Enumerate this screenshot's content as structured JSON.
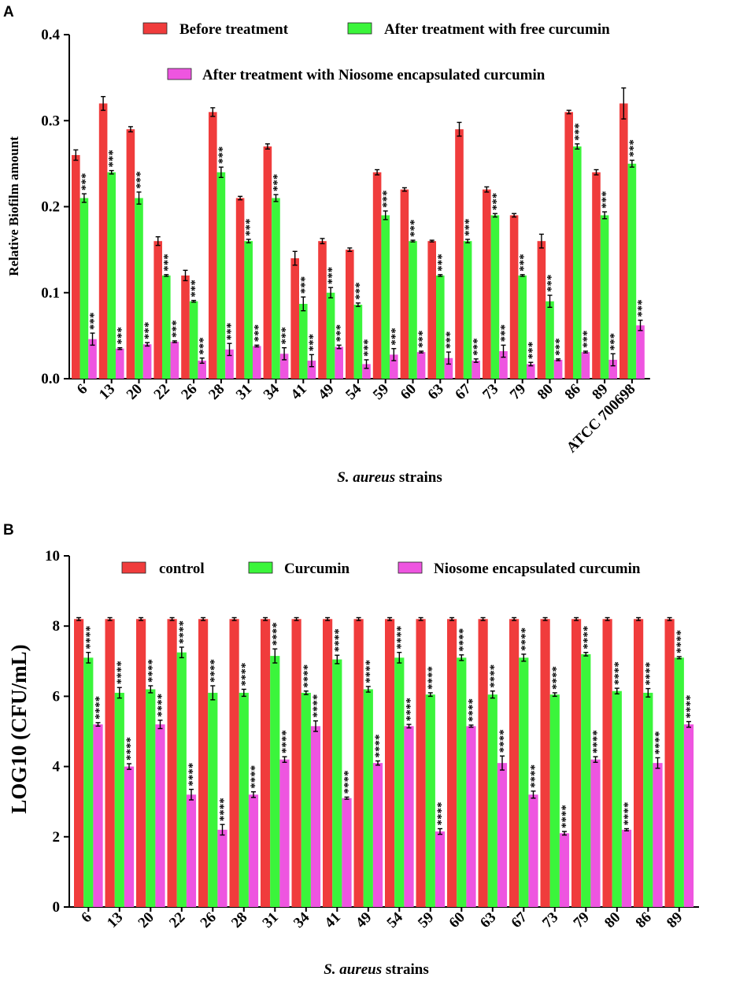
{
  "colors": {
    "series1": "#F03C3C",
    "series2": "#3BF53B",
    "series3": "#EE55E0",
    "axis": "#000000"
  },
  "chart_data": [
    {
      "panel": "A",
      "type": "bar",
      "ylabel": "Relative Biofilm amount",
      "xlabel_italic": "S. aureus",
      "xlabel_rest": "strains",
      "ylim": [
        0,
        0.4
      ],
      "yticks": [
        "0.0",
        "0.1",
        "0.2",
        "0.3",
        "0.4"
      ],
      "categories": [
        "6",
        "13",
        "20",
        "22",
        "26",
        "28",
        "31",
        "34",
        "41",
        "49",
        "54",
        "59",
        "60",
        "63",
        "67",
        "73",
        "79",
        "80",
        "86",
        "89",
        "ATCC 700698"
      ],
      "legend": [
        "Before treatment",
        "After treatment with free curcumin",
        "After treatment with Niosome encapsulated curcumin"
      ],
      "series": [
        {
          "name": "Before treatment",
          "values": [
            0.26,
            0.32,
            0.29,
            0.16,
            0.12,
            0.31,
            0.21,
            0.27,
            0.14,
            0.16,
            0.15,
            0.24,
            0.22,
            0.16,
            0.29,
            0.22,
            0.19,
            0.16,
            0.31,
            0.24,
            0.32
          ],
          "errors": [
            0.006,
            0.008,
            0.003,
            0.005,
            0.006,
            0.005,
            0.002,
            0.003,
            0.008,
            0.003,
            0.002,
            0.003,
            0.002,
            0.001,
            0.008,
            0.003,
            0.002,
            0.008,
            0.002,
            0.003,
            0.018
          ]
        },
        {
          "name": "After treatment with free curcumin",
          "values": [
            0.21,
            0.24,
            0.21,
            0.12,
            0.09,
            0.24,
            0.16,
            0.21,
            0.087,
            0.1,
            0.086,
            0.19,
            0.16,
            0.12,
            0.16,
            0.19,
            0.12,
            0.09,
            0.27,
            0.19,
            0.25
          ],
          "errors": [
            0.005,
            0.002,
            0.007,
            0.001,
            0.001,
            0.006,
            0.002,
            0.004,
            0.008,
            0.006,
            0.002,
            0.005,
            0.001,
            0.001,
            0.002,
            0.002,
            0.001,
            0.007,
            0.003,
            0.004,
            0.004
          ]
        },
        {
          "name": "After treatment with Niosome encapsulated curcumin",
          "values": [
            0.046,
            0.035,
            0.04,
            0.043,
            0.021,
            0.034,
            0.038,
            0.029,
            0.021,
            0.037,
            0.017,
            0.028,
            0.031,
            0.024,
            0.021,
            0.032,
            0.017,
            0.022,
            0.031,
            0.022,
            0.062
          ],
          "errors": [
            0.007,
            0.001,
            0.002,
            0.001,
            0.003,
            0.007,
            0.001,
            0.007,
            0.007,
            0.002,
            0.005,
            0.007,
            0.001,
            0.007,
            0.002,
            0.007,
            0.002,
            0.001,
            0.001,
            0.007,
            0.006
          ]
        }
      ],
      "significance": [
        "",
        "***",
        "***"
      ]
    },
    {
      "panel": "B",
      "type": "bar",
      "ylabel": "LOG10 (CFU/mL)",
      "xlabel_italic": "S. aureus",
      "xlabel_rest": "strains",
      "ylim": [
        0,
        10
      ],
      "yticks": [
        "0",
        "2",
        "4",
        "6",
        "8",
        "10"
      ],
      "categories": [
        "6",
        "13",
        "20",
        "22",
        "26",
        "28",
        "31",
        "34",
        "41",
        "49",
        "54",
        "59",
        "60",
        "63",
        "67",
        "73",
        "79",
        "80",
        "86",
        "89"
      ],
      "legend": [
        "control",
        "Curcumin",
        "Niosome encapsulated curcumin"
      ],
      "series": [
        {
          "name": "control",
          "values": [
            8.2,
            8.2,
            8.2,
            8.2,
            8.2,
            8.2,
            8.2,
            8.2,
            8.2,
            8.2,
            8.2,
            8.2,
            8.2,
            8.2,
            8.2,
            8.2,
            8.2,
            8.2,
            8.2,
            8.2
          ],
          "errors": [
            0.04,
            0.04,
            0.04,
            0.04,
            0.04,
            0.04,
            0.04,
            0.04,
            0.04,
            0.04,
            0.04,
            0.04,
            0.04,
            0.04,
            0.04,
            0.04,
            0.04,
            0.04,
            0.04,
            0.04
          ]
        },
        {
          "name": "Curcumin",
          "values": [
            7.1,
            6.1,
            6.2,
            7.25,
            6.1,
            6.1,
            7.15,
            6.1,
            7.05,
            6.2,
            7.1,
            6.05,
            7.1,
            6.05,
            7.1,
            6.05,
            7.2,
            6.15,
            6.1,
            7.1
          ],
          "errors": [
            0.15,
            0.15,
            0.1,
            0.15,
            0.2,
            0.1,
            0.2,
            0.05,
            0.12,
            0.08,
            0.15,
            0.05,
            0.08,
            0.1,
            0.1,
            0.05,
            0.05,
            0.08,
            0.12,
            0.03
          ]
        },
        {
          "name": "Niosome encapsulated curcumin",
          "values": [
            5.2,
            4.0,
            5.2,
            3.2,
            2.2,
            3.2,
            4.2,
            5.15,
            3.1,
            4.1,
            5.15,
            2.15,
            5.15,
            4.1,
            3.2,
            2.1,
            4.2,
            2.2,
            4.1,
            5.2
          ],
          "errors": [
            0.05,
            0.08,
            0.12,
            0.15,
            0.15,
            0.08,
            0.08,
            0.15,
            0.03,
            0.06,
            0.05,
            0.08,
            0.03,
            0.2,
            0.1,
            0.05,
            0.08,
            0.03,
            0.15,
            0.08
          ]
        }
      ],
      "significance": [
        "",
        "****",
        "****"
      ]
    }
  ]
}
